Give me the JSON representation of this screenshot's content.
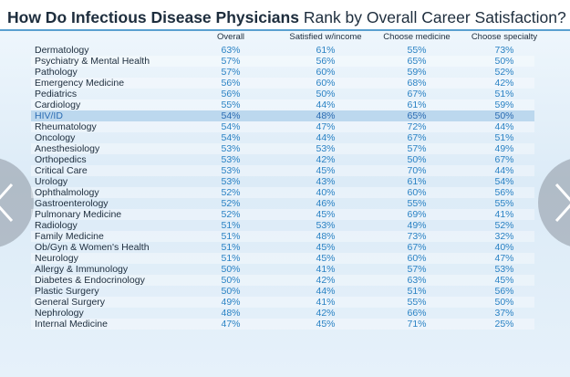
{
  "header": {
    "title_bold": "How Do Infectious Disease Physicians",
    "title_rest": "Rank by Overall Career Satisfaction?"
  },
  "table": {
    "columns": [
      "Overall",
      "Satisfied w/income",
      "Choose medicine",
      "Choose specialty"
    ],
    "highlight_row": 6,
    "rows": [
      [
        "Dermatology",
        "63%",
        "61%",
        "55%",
        "73%"
      ],
      [
        "Psychiatry & Mental Health",
        "57%",
        "56%",
        "65%",
        "50%"
      ],
      [
        "Pathology",
        "57%",
        "60%",
        "59%",
        "52%"
      ],
      [
        "Emergency Medicine",
        "56%",
        "60%",
        "68%",
        "42%"
      ],
      [
        "Pediatrics",
        "56%",
        "50%",
        "67%",
        "51%"
      ],
      [
        "Cardiology",
        "55%",
        "44%",
        "61%",
        "59%"
      ],
      [
        "HIV/ID",
        "54%",
        "48%",
        "65%",
        "50%"
      ],
      [
        "Rheumatology",
        "54%",
        "47%",
        "72%",
        "44%"
      ],
      [
        "Oncology",
        "54%",
        "44%",
        "67%",
        "51%"
      ],
      [
        "Anesthesiology",
        "53%",
        "53%",
        "57%",
        "49%"
      ],
      [
        "Orthopedics",
        "53%",
        "42%",
        "50%",
        "67%"
      ],
      [
        "Critical Care",
        "53%",
        "45%",
        "70%",
        "44%"
      ],
      [
        "Urology",
        "53%",
        "43%",
        "61%",
        "54%"
      ],
      [
        "Ophthalmology",
        "52%",
        "40%",
        "60%",
        "56%"
      ],
      [
        "Gastroenterology",
        "52%",
        "46%",
        "55%",
        "55%"
      ],
      [
        "Pulmonary Medicine",
        "52%",
        "45%",
        "69%",
        "41%"
      ],
      [
        "Radiology",
        "51%",
        "53%",
        "49%",
        "52%"
      ],
      [
        "Family Medicine",
        "51%",
        "48%",
        "73%",
        "32%"
      ],
      [
        "Ob/Gyn & Women's Health",
        "51%",
        "45%",
        "67%",
        "40%"
      ],
      [
        "Neurology",
        "51%",
        "45%",
        "60%",
        "47%"
      ],
      [
        "Allergy & Immunology",
        "50%",
        "41%",
        "57%",
        "53%"
      ],
      [
        "Diabetes & Endocrinology",
        "50%",
        "42%",
        "63%",
        "45%"
      ],
      [
        "Plastic Surgery",
        "50%",
        "44%",
        "51%",
        "56%"
      ],
      [
        "General Surgery",
        "49%",
        "41%",
        "55%",
        "50%"
      ],
      [
        "Nephrology",
        "48%",
        "42%",
        "66%",
        "37%"
      ],
      [
        "Internal Medicine",
        "47%",
        "45%",
        "71%",
        "25%"
      ]
    ]
  }
}
